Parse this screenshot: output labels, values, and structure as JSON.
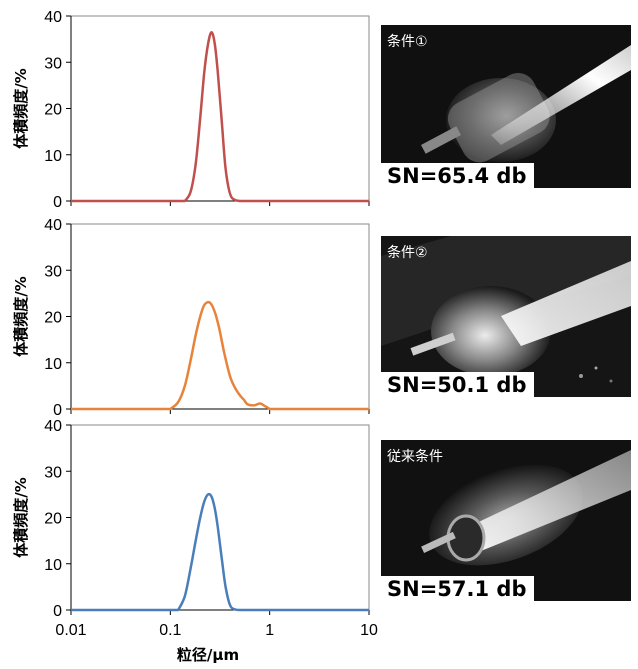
{
  "chart_data": [
    {
      "type": "line",
      "title": "",
      "xlabel": "",
      "ylabel": "体積頻度/%",
      "xscale": "log",
      "xlim": [
        0.01,
        10
      ],
      "ylim": [
        0,
        40
      ],
      "yticks": [
        "0",
        "10",
        "20",
        "30",
        "40"
      ],
      "grid": false,
      "series": [
        {
          "color": "#c0504d",
          "x": [
            0.14,
            0.16,
            0.18,
            0.2,
            0.22,
            0.24,
            0.26,
            0.28,
            0.3,
            0.33,
            0.36,
            0.4,
            0.45,
            0.5
          ],
          "y": [
            0,
            2,
            8,
            18,
            28,
            34,
            36.5,
            34,
            28,
            17,
            7,
            1.5,
            0.2,
            0
          ]
        }
      ]
    },
    {
      "type": "line",
      "title": "",
      "xlabel": "",
      "ylabel": "体積頻度/%",
      "xscale": "log",
      "xlim": [
        0.01,
        10
      ],
      "ylim": [
        0,
        40
      ],
      "yticks": [
        "0",
        "10",
        "20",
        "30",
        "40"
      ],
      "grid": false,
      "series": [
        {
          "color": "#e8833a",
          "x": [
            0.1,
            0.12,
            0.14,
            0.16,
            0.18,
            0.2,
            0.22,
            0.25,
            0.28,
            0.31,
            0.35,
            0.4,
            0.45,
            0.5,
            0.55,
            0.6,
            0.7,
            0.8,
            0.9,
            1.0
          ],
          "y": [
            0,
            1.5,
            5,
            10.5,
            16,
            20,
            22.5,
            23,
            21,
            17.5,
            12,
            7,
            4.5,
            3,
            2,
            1,
            0.8,
            1.2,
            0.6,
            0
          ]
        }
      ]
    },
    {
      "type": "line",
      "title": "",
      "xlabel": "粒径/μm",
      "ylabel": "体積頻度/%",
      "xscale": "log",
      "xlim": [
        0.01,
        10
      ],
      "ylim": [
        0,
        40
      ],
      "xticks": [
        "0.01",
        "0.1",
        "1",
        "10"
      ],
      "yticks": [
        "0",
        "10",
        "20",
        "30",
        "40"
      ],
      "grid": false,
      "series": [
        {
          "color": "#4a7ebb",
          "x": [
            0.12,
            0.14,
            0.16,
            0.18,
            0.2,
            0.22,
            0.24,
            0.26,
            0.28,
            0.3,
            0.33,
            0.36,
            0.4,
            0.45,
            0.5
          ],
          "y": [
            0,
            3,
            9,
            15,
            20,
            23.5,
            25,
            24.5,
            22,
            18,
            11,
            5,
            1,
            0.1,
            0
          ]
        }
      ]
    }
  ],
  "photos": [
    {
      "condition": "条件①",
      "sn": "SN=65.4 db"
    },
    {
      "condition": "条件②",
      "sn": "SN=50.1 db"
    },
    {
      "condition": "従来条件",
      "sn": "SN=57.1 db"
    }
  ]
}
